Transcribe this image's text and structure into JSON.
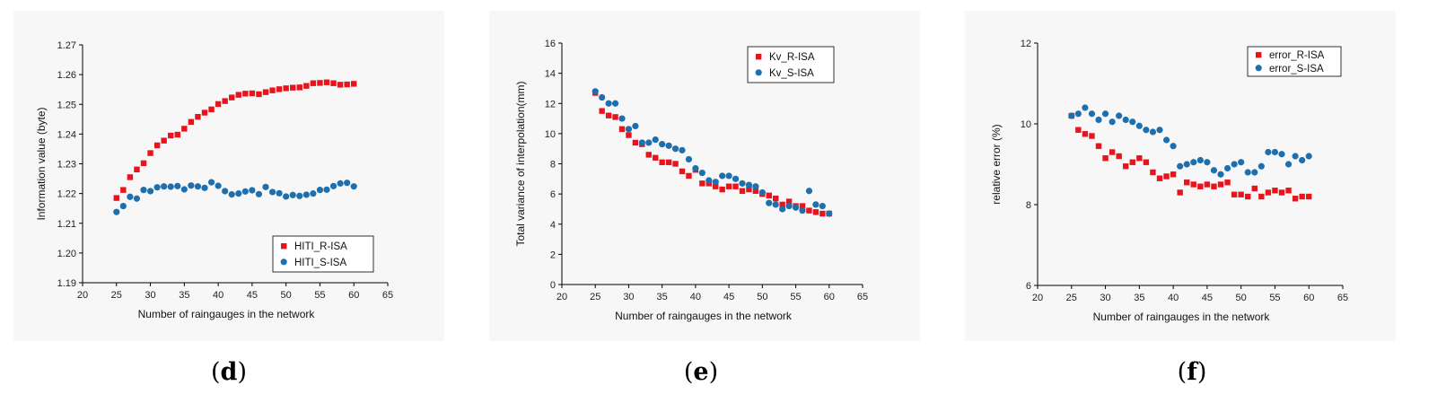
{
  "colors": {
    "r_isa": "#e8141d",
    "s_isa": "#1d6fae",
    "axis": "#000000"
  },
  "captions": [
    "d",
    "e",
    "f"
  ],
  "chart_data": [
    {
      "type": "scatter",
      "caption": "d",
      "xlabel": "Number of raingauges in the network",
      "ylabel": "Information value (byte)",
      "xlim": [
        20,
        65
      ],
      "ylim": [
        1.19,
        1.27
      ],
      "xticks": [
        "20",
        "25",
        "30",
        "35",
        "40",
        "45",
        "50",
        "55",
        "60",
        "65"
      ],
      "yticks": [
        "1.19",
        "1.20",
        "1.21",
        "1.22",
        "1.23",
        "1.24",
        "1.25",
        "1.26",
        "1.27"
      ],
      "legend": {
        "position": "lower-right",
        "entries": [
          "HITI_R-ISA",
          "HITI_S-ISA"
        ]
      },
      "x": [
        25,
        26,
        27,
        28,
        29,
        30,
        31,
        32,
        33,
        34,
        35,
        36,
        37,
        38,
        39,
        40,
        41,
        42,
        43,
        44,
        45,
        46,
        47,
        48,
        49,
        50,
        51,
        52,
        53,
        54,
        55,
        56,
        57,
        58,
        59,
        60
      ],
      "series": [
        {
          "name": "HITI_R-ISA",
          "marker": "square",
          "values": [
            1.2185,
            1.2212,
            1.2255,
            1.2281,
            1.2302,
            1.2336,
            1.2362,
            1.2378,
            1.2395,
            1.2398,
            1.2418,
            1.2441,
            1.2458,
            1.2472,
            1.2483,
            1.2501,
            1.2511,
            1.2523,
            1.2532,
            1.2536,
            1.2537,
            1.2534,
            1.2541,
            1.2547,
            1.2551,
            1.2554,
            1.2556,
            1.2557,
            1.2562,
            1.2571,
            1.2572,
            1.2574,
            1.2571,
            1.2566,
            1.2567,
            1.2569
          ]
        },
        {
          "name": "HITI_S-ISA",
          "marker": "circle",
          "values": [
            1.2138,
            1.2158,
            1.2189,
            1.2183,
            1.2212,
            1.2208,
            1.2221,
            1.2224,
            1.2223,
            1.2225,
            1.2214,
            1.2227,
            1.2224,
            1.2219,
            1.2238,
            1.2226,
            1.2208,
            1.2197,
            1.22,
            1.2207,
            1.2211,
            1.2198,
            1.2222,
            1.2205,
            1.2201,
            1.219,
            1.2195,
            1.2192,
            1.2196,
            1.22,
            1.2212,
            1.2213,
            1.2225,
            1.2234,
            1.2236,
            1.2224
          ]
        }
      ]
    },
    {
      "type": "scatter",
      "caption": "e",
      "xlabel": "Number of raingauges in the network",
      "ylabel": "Total variance of interpolation(mm)",
      "xlim": [
        20,
        65
      ],
      "ylim": [
        0,
        16
      ],
      "xticks": [
        "20",
        "25",
        "30",
        "35",
        "40",
        "45",
        "50",
        "55",
        "60",
        "65"
      ],
      "yticks": [
        "0",
        "2",
        "4",
        "6",
        "8",
        "10",
        "12",
        "14",
        "16"
      ],
      "legend": {
        "position": "top-right",
        "entries": [
          "Kv_R-ISA",
          "Kv_S-ISA"
        ]
      },
      "x": [
        25,
        26,
        27,
        28,
        29,
        30,
        31,
        32,
        33,
        34,
        35,
        36,
        37,
        38,
        39,
        40,
        41,
        42,
        43,
        44,
        45,
        46,
        47,
        48,
        49,
        50,
        51,
        52,
        53,
        54,
        55,
        56,
        57,
        58,
        59,
        60
      ],
      "series": [
        {
          "name": "Kv_R-ISA",
          "marker": "square",
          "values": [
            12.7,
            11.5,
            11.2,
            11.1,
            10.3,
            9.9,
            9.4,
            9.3,
            8.6,
            8.4,
            8.1,
            8.1,
            8.0,
            7.5,
            7.2,
            7.6,
            6.7,
            6.7,
            6.5,
            6.3,
            6.5,
            6.5,
            6.2,
            6.3,
            6.2,
            6.0,
            5.9,
            5.7,
            5.3,
            5.5,
            5.2,
            5.2,
            4.9,
            4.8,
            4.7,
            4.7
          ]
        },
        {
          "name": "Kv_S-ISA",
          "marker": "circle",
          "values": [
            12.8,
            12.4,
            12.0,
            12.0,
            11.0,
            10.3,
            10.5,
            9.4,
            9.4,
            9.6,
            9.3,
            9.2,
            9.0,
            8.9,
            8.3,
            7.7,
            7.4,
            6.9,
            6.8,
            7.2,
            7.2,
            7.0,
            6.7,
            6.6,
            6.5,
            6.1,
            5.4,
            5.3,
            5.0,
            5.2,
            5.1,
            4.9,
            6.2,
            5.3,
            5.2,
            4.7
          ]
        }
      ]
    },
    {
      "type": "scatter",
      "caption": "f",
      "xlabel": "Number of raingauges in the network",
      "ylabel": "relative error (%)",
      "xlim": [
        20,
        65
      ],
      "ylim": [
        6,
        12
      ],
      "xticks": [
        "20",
        "25",
        "30",
        "35",
        "40",
        "45",
        "50",
        "55",
        "60",
        "65"
      ],
      "yticks": [
        "6",
        "8",
        "10",
        "12"
      ],
      "legend": {
        "position": "top-right",
        "entries": [
          "error_R-ISA",
          "error_S-ISA"
        ]
      },
      "x": [
        25,
        26,
        27,
        28,
        29,
        30,
        31,
        32,
        33,
        34,
        35,
        36,
        37,
        38,
        39,
        40,
        41,
        42,
        43,
        44,
        45,
        46,
        47,
        48,
        49,
        50,
        51,
        52,
        53,
        54,
        55,
        56,
        57,
        58,
        59,
        60
      ],
      "series": [
        {
          "name": "error_R-ISA",
          "marker": "square",
          "values": [
            10.2,
            9.85,
            9.75,
            9.7,
            9.45,
            9.15,
            9.3,
            9.2,
            8.95,
            9.05,
            9.15,
            9.05,
            8.8,
            8.65,
            8.7,
            8.75,
            8.3,
            8.55,
            8.5,
            8.45,
            8.5,
            8.45,
            8.5,
            8.55,
            8.25,
            8.25,
            8.2,
            8.4,
            8.2,
            8.3,
            8.35,
            8.3,
            8.35,
            8.15,
            8.2,
            8.2
          ]
        },
        {
          "name": "error_S-ISA",
          "marker": "circle",
          "values": [
            10.2,
            10.25,
            10.4,
            10.25,
            10.1,
            10.25,
            10.05,
            10.2,
            10.1,
            10.05,
            9.95,
            9.85,
            9.8,
            9.85,
            9.6,
            9.45,
            8.95,
            9.0,
            9.05,
            9.1,
            9.05,
            8.85,
            8.75,
            8.9,
            9.0,
            9.05,
            8.8,
            8.8,
            8.95,
            9.3,
            9.3,
            9.25,
            9.0,
            9.2,
            9.1,
            9.2
          ]
        }
      ]
    }
  ]
}
